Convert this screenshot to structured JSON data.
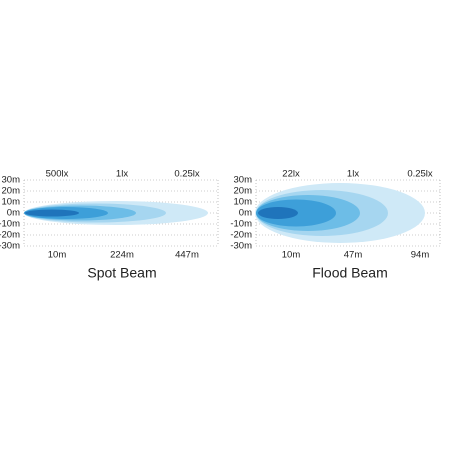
{
  "panels": [
    {
      "y_labels": [
        "30m",
        "20m",
        "10m",
        "0m",
        "-10m",
        "-20m",
        "-30m"
      ],
      "top_labels": [
        "500lx",
        "1lx",
        "0.25lx"
      ],
      "bottom_labels": [
        "10m",
        "224m",
        "447m"
      ],
      "caption": "Spot Beam"
    },
    {
      "y_labels": [
        "30m",
        "20m",
        "10m",
        "0m",
        "-10m",
        "-20m",
        "-30m"
      ],
      "top_labels": [
        "22lx",
        "1lx",
        "0.25lx"
      ],
      "bottom_labels": [
        "10m",
        "47m",
        "94m"
      ],
      "caption": "Flood  Beam"
    }
  ]
}
